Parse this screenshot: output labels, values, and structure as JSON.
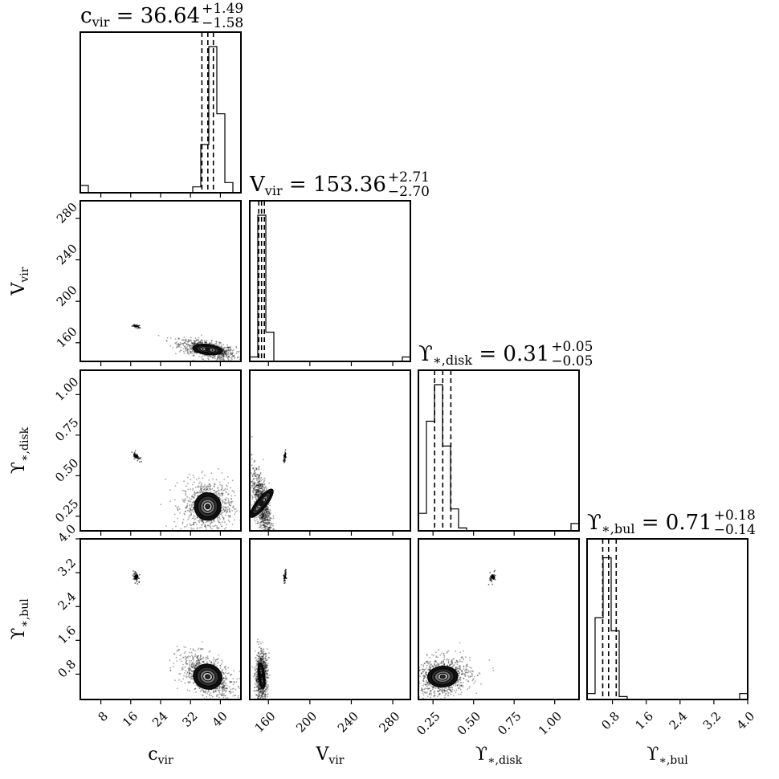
{
  "figure": {
    "kind": "corner plot"
  },
  "params": [
    {
      "key": "c_vir",
      "label": "c",
      "label_sub": "vir",
      "title_sym": "c",
      "title_sub": "vir",
      "median": "36.64",
      "plus": "+1.49",
      "minus": "−1.58"
    },
    {
      "key": "V_vir",
      "label": "V",
      "label_sub": "vir",
      "title_sym": "V",
      "title_sub": "vir",
      "median": "153.36",
      "plus": "+2.71",
      "minus": "−2.70"
    },
    {
      "key": "Y_disk",
      "label": "ϒ",
      "label_sub": "∗,disk",
      "title_sym": "ϒ",
      "title_sub": "∗,disk",
      "median": "0.31",
      "plus": "+0.05",
      "minus": "−0.05"
    },
    {
      "key": "Y_bul",
      "label": "ϒ",
      "label_sub": "∗,bul",
      "title_sym": "ϒ",
      "title_sub": "∗,bul",
      "median": "0.71",
      "plus": "+0.18",
      "minus": "−0.14"
    }
  ],
  "chart_data": {
    "type": "corner",
    "parameters": [
      "c_vir",
      "V_vir",
      "Upsilon_*,disk",
      "Upsilon_*,bul"
    ],
    "ranges": [
      [
        2.5,
        45.5
      ],
      [
        142,
        297
      ],
      [
        0.16,
        1.15
      ],
      [
        0.2,
        4.0
      ]
    ],
    "ticks": [
      {
        "values": [
          8,
          16,
          24,
          32,
          40
        ],
        "labels": [
          "8",
          "16",
          "24",
          "32",
          "40"
        ]
      },
      {
        "values": [
          160,
          200,
          240,
          280
        ],
        "labels": [
          "160",
          "200",
          "240",
          "280"
        ]
      },
      {
        "values": [
          0.25,
          0.5,
          0.75,
          1.0
        ],
        "labels": [
          "0.25",
          "0.50",
          "0.75",
          "1.00"
        ]
      },
      {
        "values": [
          0.8,
          1.6,
          2.4,
          3.2,
          4.0
        ],
        "labels": [
          "0.8",
          "1.6",
          "2.4",
          "3.2",
          "4.0"
        ]
      }
    ],
    "quantiles": [
      {
        "median": 36.64,
        "lower": 35.06,
        "upper": 38.13
      },
      {
        "median": 153.36,
        "lower": 150.66,
        "upper": 156.07
      },
      {
        "median": 0.31,
        "lower": 0.26,
        "upper": 0.36
      },
      {
        "median": 0.71,
        "lower": 0.57,
        "upper": 0.89
      }
    ],
    "histograms": [
      {
        "edges": [
          2.5,
          4.65,
          6.8,
          8.95,
          11.1,
          13.25,
          15.4,
          17.55,
          19.7,
          21.85,
          24.0,
          26.15,
          28.3,
          30.45,
          32.6,
          34.75,
          36.9,
          39.05,
          41.2,
          43.35,
          45.5
        ],
        "counts": [
          0.05,
          0,
          0,
          0,
          0,
          0,
          0,
          0,
          0,
          0,
          0,
          0,
          0,
          0,
          0.04,
          0.33,
          1.0,
          0.54,
          0.07,
          0
        ]
      },
      {
        "edges": [
          142,
          149.75,
          157.5,
          165.25,
          173,
          180.75,
          188.5,
          196.25,
          204,
          211.75,
          219.5,
          227.25,
          235,
          242.75,
          250.5,
          258.25,
          266,
          273.75,
          281.5,
          289.25,
          297
        ],
        "counts": [
          0.03,
          1.0,
          0.2,
          0,
          0,
          0,
          0,
          0,
          0,
          0,
          0,
          0,
          0,
          0,
          0,
          0,
          0,
          0,
          0,
          0.03
        ]
      },
      {
        "edges": [
          0.16,
          0.2095,
          0.259,
          0.3085,
          0.358,
          0.4075,
          0.457,
          0.5065,
          0.556,
          0.6055,
          0.655,
          0.7045,
          0.754,
          0.8035,
          0.853,
          0.9025,
          0.952,
          1.0015,
          1.051,
          1.1005,
          1.15
        ],
        "counts": [
          0.12,
          0.75,
          1.0,
          0.58,
          0.15,
          0.02,
          0,
          0,
          0,
          0,
          0,
          0,
          0,
          0,
          0,
          0,
          0,
          0,
          0,
          0.05
        ]
      },
      {
        "edges": [
          0.2,
          0.39,
          0.58,
          0.77,
          0.96,
          1.15,
          1.34,
          1.53,
          1.72,
          1.91,
          2.1,
          2.29,
          2.48,
          2.67,
          2.86,
          3.05,
          3.24,
          3.43,
          3.62,
          3.81,
          4.0
        ],
        "counts": [
          0.04,
          0.56,
          0.97,
          0.47,
          0.02,
          0,
          0,
          0,
          0,
          0,
          0,
          0,
          0,
          0,
          0,
          0,
          0,
          0,
          0,
          0.04
        ]
      }
    ],
    "blobs": [
      {
        "x": 36.6,
        "y": 153.5,
        "sx": 2.6,
        "sy": 3.2,
        "rho": -0.55
      },
      {
        "x": 17.5,
        "y": 176,
        "sx": 0.35,
        "sy": 0.6,
        "rho": -0.5
      },
      {
        "x": 36.6,
        "y": 0.31,
        "sx": 2.3,
        "sy": 0.055,
        "rho": 0.0
      },
      {
        "x": 17.5,
        "y": 0.62,
        "sx": 0.35,
        "sy": 0.01,
        "rho": -0.6
      },
      {
        "x": 153.4,
        "y": 0.33,
        "sx": 3.2,
        "sy": 0.07,
        "rho": -0.6
      },
      {
        "x": 176,
        "y": 0.62,
        "sx": 0.4,
        "sy": 0.01,
        "rho": 0.6
      },
      {
        "x": 36.6,
        "y": 0.74,
        "sx": 2.5,
        "sy": 0.19,
        "rho": -0.55
      },
      {
        "x": 17.5,
        "y": 3.1,
        "sx": 0.35,
        "sy": 0.05,
        "rho": -0.5
      },
      {
        "x": 153.4,
        "y": 0.76,
        "sx": 2.0,
        "sy": 0.2,
        "rho": 0.05
      },
      {
        "x": 176,
        "y": 3.1,
        "sx": 0.4,
        "sy": 0.05,
        "rho": 0.6
      },
      {
        "x": 0.31,
        "y": 0.74,
        "sx": 0.06,
        "sy": 0.16,
        "rho": 0.15
      },
      {
        "x": 0.62,
        "y": 3.1,
        "sx": 0.008,
        "sy": 0.05,
        "rho": 0.6
      }
    ]
  }
}
